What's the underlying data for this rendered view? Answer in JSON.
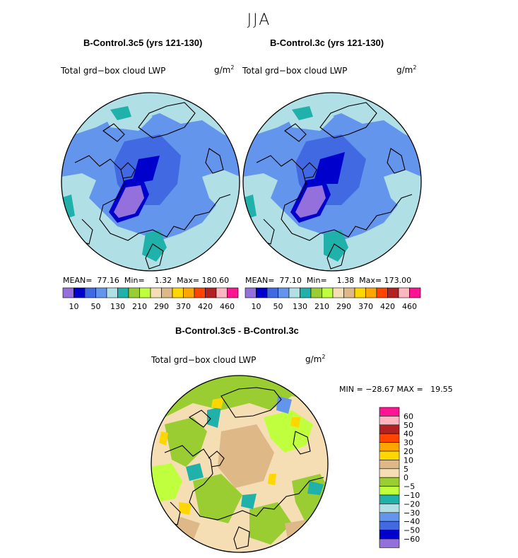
{
  "figure": {
    "season": "JJA"
  },
  "panels": [
    {
      "title": "B-Control.3c5 (yrs 121-130)",
      "field": "Total grd−box cloud LWP",
      "units_base": "g/m",
      "units_exp": "2",
      "stats": {
        "mean_label": "MEAN=",
        "mean": "77.16",
        "min_label": "Min=",
        "min": "1.32",
        "max_label": "Max=",
        "max": "180.60"
      }
    },
    {
      "title": "B-Control.3c (yrs 121-130)",
      "field": "Total grd−box cloud LWP",
      "units_base": "g/m",
      "units_exp": "2",
      "stats": {
        "mean_label": "MEAN=",
        "mean": "77.10",
        "min_label": "Min=",
        "min": "1.38",
        "max_label": "Max=",
        "max": "173.00"
      }
    }
  ],
  "diff_panel": {
    "title": "B-Control.3c5 - B-Control.3c",
    "field": "Total grd−box cloud LWP",
    "units_base": "g/m",
    "units_exp": "2",
    "stats": {
      "min_label": "MIN =",
      "min": "−28.67",
      "max_label": "MAX =",
      "max": "19.55"
    }
  },
  "chart_data": [
    {
      "type": "heatmap",
      "projection": "north polar stereographic",
      "title": "B-Control.3c5 (yrs 121-130)",
      "variable": "Total grd-box cloud LWP",
      "units": "g/m2",
      "mean": 77.16,
      "min": 1.32,
      "max": 180.6,
      "colorbar": {
        "tick_labels": [
          "10",
          "50",
          "130",
          "210",
          "290",
          "370",
          "420",
          "460"
        ],
        "colors": [
          "#9370db",
          "#0000cd",
          "#4169e1",
          "#6495ed",
          "#b0e0e6",
          "#20b2aa",
          "#9acd32",
          "#c0ff3e",
          "#f5deb3",
          "#deb887",
          "#ffd700",
          "#ffa500",
          "#ff4500",
          "#b22222",
          "#ffb6c1",
          "#ff1493"
        ]
      }
    },
    {
      "type": "heatmap",
      "projection": "north polar stereographic",
      "title": "B-Control.3c (yrs 121-130)",
      "variable": "Total grd-box cloud LWP",
      "units": "g/m2",
      "mean": 77.1,
      "min": 1.38,
      "max": 173.0,
      "colorbar": {
        "tick_labels": [
          "10",
          "50",
          "130",
          "210",
          "290",
          "370",
          "420",
          "460"
        ],
        "colors": [
          "#9370db",
          "#0000cd",
          "#4169e1",
          "#6495ed",
          "#b0e0e6",
          "#20b2aa",
          "#9acd32",
          "#c0ff3e",
          "#f5deb3",
          "#deb887",
          "#ffd700",
          "#ffa500",
          "#ff4500",
          "#b22222",
          "#ffb6c1",
          "#ff1493"
        ]
      }
    },
    {
      "type": "heatmap",
      "projection": "north polar stereographic",
      "title": "B-Control.3c5 - B-Control.3c",
      "variable": "Total grd-box cloud LWP difference",
      "units": "g/m2",
      "min": -28.67,
      "max": 19.55,
      "colorbar": {
        "tick_labels": [
          "60",
          "50",
          "40",
          "30",
          "20",
          "10",
          "5",
          "0",
          "−5",
          "−10",
          "−20",
          "−30",
          "−40",
          "−50",
          "−60"
        ],
        "colors_top_to_bottom": [
          "#ff1493",
          "#ffb6c1",
          "#b22222",
          "#ff4500",
          "#ffa500",
          "#ffd700",
          "#deb887",
          "#f5deb3",
          "#9acd32",
          "#c0ff3e",
          "#20b2aa",
          "#b0e0e6",
          "#6495ed",
          "#4169e1",
          "#0000cd",
          "#9370db"
        ]
      }
    }
  ]
}
